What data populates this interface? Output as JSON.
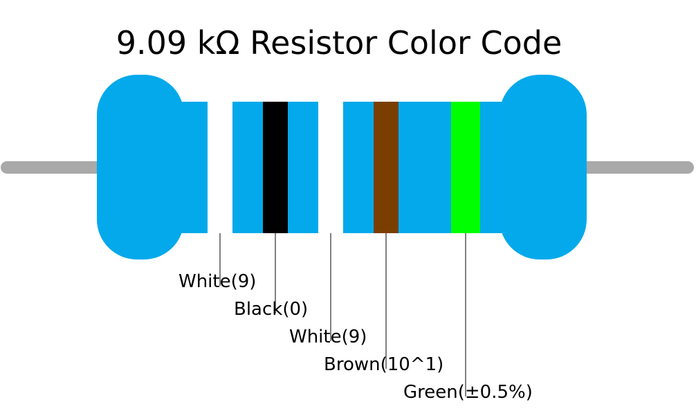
{
  "title": "9.09 kΩ Resistor Color Code",
  "body_color": "#03a9eb",
  "lead_color": "#a9a9a9",
  "bands": [
    {
      "label": "White(9)",
      "color": "#ffffff"
    },
    {
      "label": "Black(0)",
      "color": "#000000"
    },
    {
      "label": "White(9)",
      "color": "#ffffff"
    },
    {
      "label": "Brown(10^1)",
      "color": "#7a3f00"
    },
    {
      "label": "Green(±0.5%)",
      "color": "#00ff00"
    }
  ]
}
